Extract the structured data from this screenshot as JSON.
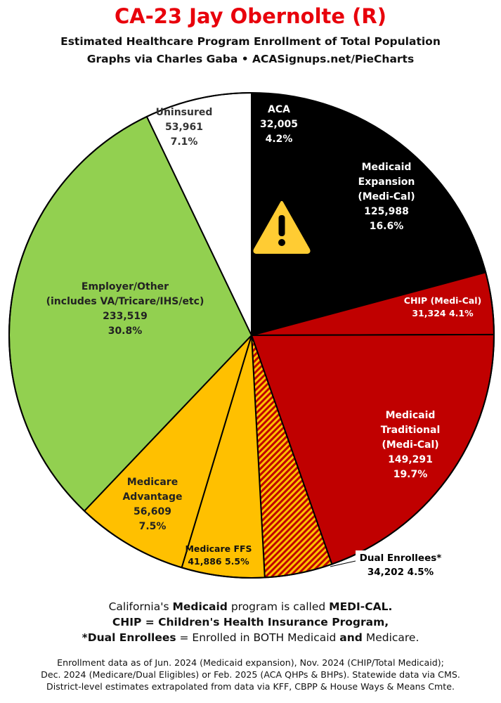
{
  "header": {
    "title": "CA-23 Jay Obernolte (R)",
    "subtitle_line1": "Estimated Healthcare Program Enrollment of Total Population",
    "subtitle_line2": "Graphs via Charles Gaba  •  ACASignups.net/PieCharts"
  },
  "chart_data": {
    "type": "pie",
    "title": "CA-23 Jay Obernolte (R)",
    "start": "12 o'clock, clockwise",
    "slices": [
      {
        "label": "ACA",
        "value": 32005,
        "percent": 4.2,
        "color": "#000000",
        "label_color": "#ffffff",
        "text_lines": [
          "ACA",
          "32,005",
          "4.2%"
        ]
      },
      {
        "label": "Medicaid Expansion (Medi-Cal)",
        "value": 125988,
        "percent": 16.6,
        "color": "#000000",
        "label_color": "#ffffff",
        "text_lines": [
          "Medicaid",
          "Expansion",
          "(Medi-Cal)",
          "125,988",
          "16.6%"
        ]
      },
      {
        "label": "CHIP (Medi-Cal)",
        "value": 31324,
        "percent": 4.1,
        "color": "#c00000",
        "label_color": "#ffffff",
        "text_lines": [
          "CHIP (Medi-Cal)",
          "31,324 4.1%"
        ]
      },
      {
        "label": "Medicaid Traditional (Medi-Cal)",
        "value": 149291,
        "percent": 19.7,
        "color": "#c00000",
        "label_color": "#ffffff",
        "text_lines": [
          "Medicaid",
          "Traditional",
          "(Medi-Cal)",
          "149,291",
          "19.7%"
        ]
      },
      {
        "label": "Dual Enrollees*",
        "value": 34202,
        "percent": 4.5,
        "color": "#ffc000",
        "hatch_color": "#c00000",
        "pattern": "hatched",
        "label_color": "#000000",
        "label_outside": true,
        "text_lines": [
          "Dual Enrollees*",
          "34,202 4.5%"
        ]
      },
      {
        "label": "Medicare FFS",
        "value": 41886,
        "percent": 5.5,
        "color": "#ffc000",
        "label_color": "#111111",
        "text_lines": [
          "Medicare FFS",
          "41,886 5.5%"
        ]
      },
      {
        "label": "Medicare Advantage",
        "value": 56609,
        "percent": 7.5,
        "color": "#ffc000",
        "label_color": "#222222",
        "text_lines": [
          "Medicare",
          "Advantage",
          "56,609",
          "7.5%"
        ]
      },
      {
        "label": "Employer/Other (includes VA/Tricare/IHS/etc)",
        "value": 233519,
        "percent": 30.8,
        "color": "#92d050",
        "label_color": "#222222",
        "text_lines": [
          "Employer/Other",
          "(includes VA/Tricare/IHS/etc)",
          "233,519",
          "30.8%"
        ]
      },
      {
        "label": "Uninsured",
        "value": 53961,
        "percent": 7.1,
        "color": "#ffffff",
        "label_color": "#333333",
        "text_lines": [
          "Uninsured",
          "53,961",
          "7.1%"
        ]
      }
    ],
    "annotations": [
      {
        "type": "warning-icon",
        "slice": "ACA",
        "color": "#ffcc33"
      }
    ]
  },
  "footer": {
    "line1": [
      "California's ",
      "Medicaid",
      " program is called ",
      "MEDI-CAL."
    ],
    "line2": "CHIP = Children's Health Insurance Program,",
    "line3": [
      "*Dual Enrollees",
      " = Enrolled in BOTH Medicaid ",
      "and",
      " Medicare."
    ]
  },
  "source": {
    "line1": "Enrollment data as of Jun. 2024 (Medicaid expansion), Nov. 2024 (CHIP/Total Medicaid);",
    "line2": "Dec. 2024 (Medicare/Dual Eligibles) or Feb. 2025 (ACA QHPs & BHPs). Statewide data via CMS.",
    "line3": "District-level estimates extrapolated from data via KFF, CBPP & House Ways & Means Cmte."
  }
}
